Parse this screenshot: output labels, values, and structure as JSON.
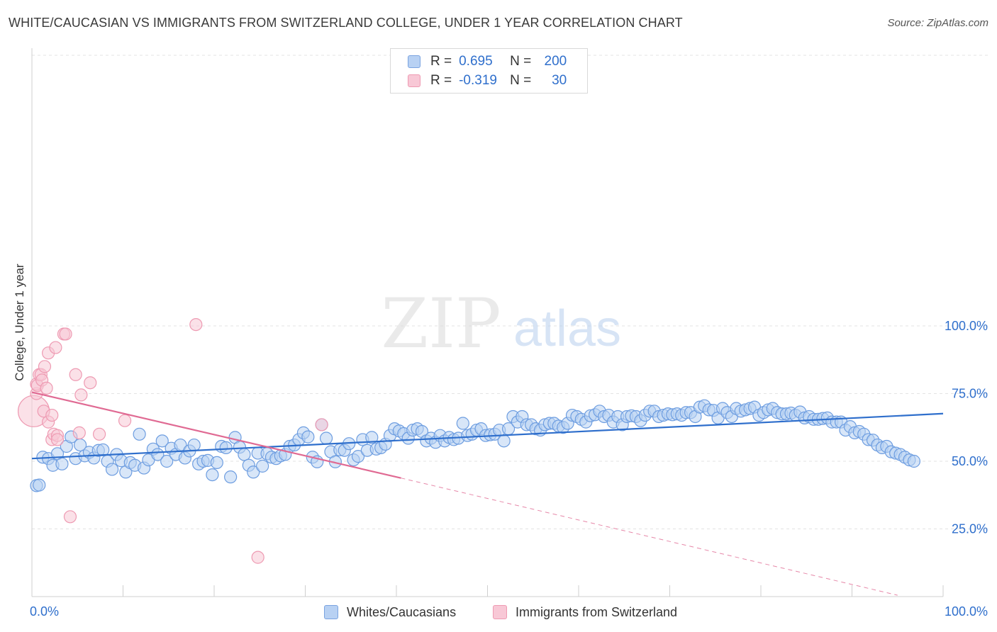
{
  "title": "WHITE/CAUCASIAN VS IMMIGRANTS FROM SWITZERLAND COLLEGE, UNDER 1 YEAR CORRELATION CHART",
  "source": "Source: ZipAtlas.com",
  "watermark": {
    "zip": "ZIP",
    "atlas": "atlas"
  },
  "legend": {
    "r_label": "R =",
    "n_label": "N =",
    "rows": [
      {
        "r": "0.695",
        "n": "200",
        "color": "#b8d1f3"
      },
      {
        "r": "-0.319",
        "n": "30",
        "color": "#f8c8d6"
      }
    ]
  },
  "bottom_legend": [
    {
      "label": "Whites/Caucasians",
      "color": "#b8d1f3"
    },
    {
      "label": "Immigrants from Switzerland",
      "color": "#f8c8d6"
    }
  ],
  "colors": {
    "blue": "#2f6fcc",
    "blue_fill": "#b8d1f3",
    "blue_stroke": "#6d9de0",
    "pink": "#e06a93",
    "pink_fill": "#f8c8d6",
    "pink_stroke": "#ee9ab2"
  },
  "chart_data": {
    "type": "scatter",
    "xlabel": "",
    "ylabel": "College, Under 1 year",
    "xlim": [
      0,
      100
    ],
    "ylim": [
      0,
      102
    ],
    "x_tick_labels": [
      "0.0%",
      "100.0%"
    ],
    "y_ticks": [
      25,
      50,
      75,
      100
    ],
    "y_tick_labels": [
      "25.0%",
      "50.0%",
      "75.0%",
      "100.0%"
    ],
    "grid": true,
    "legend_position": "top-center",
    "series": [
      {
        "name": "Whites/Caucasians",
        "trend": {
          "x0": 0,
          "y0": 51.0,
          "x1": 100,
          "y1": 67.6
        },
        "points": [
          [
            0.5,
            41.0
          ],
          [
            0.8,
            41.2
          ],
          [
            1.2,
            51.5
          ],
          [
            1.8,
            51.0
          ],
          [
            2.3,
            48.5
          ],
          [
            2.8,
            52.8
          ],
          [
            3.3,
            49.0
          ],
          [
            3.8,
            55.5
          ],
          [
            4.3,
            59.0
          ],
          [
            4.8,
            51.0
          ],
          [
            5.3,
            56.0
          ],
          [
            5.8,
            52.0
          ],
          [
            6.3,
            53.3
          ],
          [
            6.8,
            51.2
          ],
          [
            7.3,
            54.0
          ],
          [
            7.8,
            54.2
          ],
          [
            8.3,
            50.0
          ],
          [
            8.8,
            47.0
          ],
          [
            9.3,
            52.5
          ],
          [
            9.8,
            50.2
          ],
          [
            10.3,
            46.0
          ],
          [
            10.8,
            49.5
          ],
          [
            11.3,
            48.5
          ],
          [
            11.8,
            60.0
          ],
          [
            12.3,
            47.5
          ],
          [
            12.8,
            50.5
          ],
          [
            13.3,
            54.5
          ],
          [
            13.8,
            52.5
          ],
          [
            14.3,
            57.5
          ],
          [
            14.8,
            50.0
          ],
          [
            15.3,
            54.8
          ],
          [
            15.8,
            52.5
          ],
          [
            16.3,
            56.0
          ],
          [
            16.8,
            51.2
          ],
          [
            17.3,
            53.8
          ],
          [
            17.8,
            56.0
          ],
          [
            18.3,
            49.0
          ],
          [
            18.8,
            50.0
          ],
          [
            19.3,
            50.3
          ],
          [
            19.8,
            45.0
          ],
          [
            20.3,
            49.5
          ],
          [
            20.8,
            55.5
          ],
          [
            21.3,
            55.0
          ],
          [
            21.8,
            44.2
          ],
          [
            22.3,
            58.8
          ],
          [
            22.8,
            55.2
          ],
          [
            23.3,
            52.5
          ],
          [
            23.8,
            48.5
          ],
          [
            24.3,
            46.0
          ],
          [
            24.8,
            53.0
          ],
          [
            25.3,
            48.2
          ],
          [
            25.8,
            52.8
          ],
          [
            26.3,
            51.5
          ],
          [
            26.8,
            51.0
          ],
          [
            27.3,
            52.0
          ],
          [
            27.8,
            52.5
          ],
          [
            28.3,
            55.5
          ],
          [
            28.8,
            56.0
          ],
          [
            29.3,
            58.0
          ],
          [
            29.8,
            60.5
          ],
          [
            30.3,
            59.0
          ],
          [
            30.8,
            51.5
          ],
          [
            31.3,
            49.8
          ],
          [
            31.8,
            63.5
          ],
          [
            32.3,
            58.5
          ],
          [
            32.8,
            53.5
          ],
          [
            33.3,
            49.8
          ],
          [
            33.8,
            54.2
          ],
          [
            34.3,
            54.0
          ],
          [
            34.8,
            56.5
          ],
          [
            35.3,
            50.5
          ],
          [
            35.8,
            51.8
          ],
          [
            36.3,
            58.0
          ],
          [
            36.8,
            54.0
          ],
          [
            37.3,
            58.8
          ],
          [
            37.8,
            54.5
          ],
          [
            38.3,
            55.0
          ],
          [
            38.8,
            56.3
          ],
          [
            39.3,
            59.5
          ],
          [
            39.8,
            62.0
          ],
          [
            40.3,
            61.2
          ],
          [
            40.8,
            60.2
          ],
          [
            41.3,
            58.5
          ],
          [
            41.8,
            61.5
          ],
          [
            42.3,
            62.0
          ],
          [
            42.8,
            61.0
          ],
          [
            43.3,
            57.5
          ],
          [
            43.8,
            58.5
          ],
          [
            44.3,
            57.0
          ],
          [
            44.8,
            59.5
          ],
          [
            45.3,
            57.5
          ],
          [
            45.8,
            58.8
          ],
          [
            46.3,
            58.0
          ],
          [
            46.8,
            58.5
          ],
          [
            47.3,
            64.0
          ],
          [
            47.8,
            59.5
          ],
          [
            48.3,
            60.0
          ],
          [
            48.8,
            61.5
          ],
          [
            49.3,
            62.0
          ],
          [
            49.8,
            59.5
          ],
          [
            50.3,
            59.8
          ],
          [
            50.8,
            60.0
          ],
          [
            51.3,
            61.5
          ],
          [
            51.8,
            57.5
          ],
          [
            52.3,
            62.0
          ],
          [
            52.8,
            66.5
          ],
          [
            53.3,
            64.5
          ],
          [
            53.8,
            66.5
          ],
          [
            54.3,
            63.5
          ],
          [
            54.8,
            63.5
          ],
          [
            55.3,
            62.0
          ],
          [
            55.8,
            61.5
          ],
          [
            56.3,
            63.5
          ],
          [
            56.8,
            64.0
          ],
          [
            57.3,
            64.0
          ],
          [
            57.8,
            63.0
          ],
          [
            58.3,
            62.5
          ],
          [
            58.8,
            64.0
          ],
          [
            59.3,
            67.0
          ],
          [
            59.8,
            66.5
          ],
          [
            60.3,
            65.5
          ],
          [
            60.8,
            64.5
          ],
          [
            61.3,
            66.8
          ],
          [
            61.8,
            67.2
          ],
          [
            62.3,
            68.5
          ],
          [
            62.8,
            66.5
          ],
          [
            63.3,
            67.0
          ],
          [
            63.8,
            64.5
          ],
          [
            64.3,
            66.5
          ],
          [
            64.8,
            63.5
          ],
          [
            65.3,
            66.5
          ],
          [
            65.8,
            66.8
          ],
          [
            66.3,
            66.5
          ],
          [
            66.8,
            65.0
          ],
          [
            67.3,
            67.0
          ],
          [
            67.8,
            68.5
          ],
          [
            68.3,
            68.5
          ],
          [
            68.8,
            66.5
          ],
          [
            69.3,
            67.0
          ],
          [
            69.8,
            67.5
          ],
          [
            70.3,
            67.2
          ],
          [
            70.8,
            67.5
          ],
          [
            71.3,
            67.0
          ],
          [
            71.8,
            68.0
          ],
          [
            72.3,
            68.0
          ],
          [
            72.8,
            66.5
          ],
          [
            73.3,
            70.0
          ],
          [
            73.8,
            70.5
          ],
          [
            74.3,
            69.0
          ],
          [
            74.8,
            68.8
          ],
          [
            75.3,
            66.0
          ],
          [
            75.8,
            69.5
          ],
          [
            76.3,
            68.0
          ],
          [
            76.8,
            66.5
          ],
          [
            77.3,
            69.5
          ],
          [
            77.8,
            68.5
          ],
          [
            78.3,
            69.0
          ],
          [
            78.8,
            69.5
          ],
          [
            79.3,
            70.0
          ],
          [
            79.8,
            67.0
          ],
          [
            80.3,
            68.0
          ],
          [
            80.8,
            69.0
          ],
          [
            81.3,
            69.5
          ],
          [
            81.8,
            68.0
          ],
          [
            82.3,
            67.5
          ],
          [
            82.8,
            67.5
          ],
          [
            83.3,
            67.8
          ],
          [
            83.8,
            67.0
          ],
          [
            84.3,
            68.2
          ],
          [
            84.8,
            66.0
          ],
          [
            85.3,
            66.5
          ],
          [
            85.8,
            65.5
          ],
          [
            86.3,
            65.5
          ],
          [
            86.8,
            65.8
          ],
          [
            87.3,
            66.0
          ],
          [
            87.8,
            64.5
          ],
          [
            88.3,
            64.5
          ],
          [
            88.8,
            64.5
          ],
          [
            89.3,
            61.5
          ],
          [
            89.8,
            62.8
          ],
          [
            90.3,
            60.5
          ],
          [
            90.8,
            61.0
          ],
          [
            91.3,
            60.0
          ],
          [
            91.8,
            58.0
          ],
          [
            92.3,
            57.8
          ],
          [
            92.8,
            56.0
          ],
          [
            93.3,
            55.0
          ],
          [
            93.8,
            55.5
          ],
          [
            94.3,
            53.5
          ],
          [
            94.8,
            53.0
          ],
          [
            95.3,
            52.5
          ],
          [
            95.8,
            51.5
          ],
          [
            96.3,
            50.5
          ],
          [
            96.8,
            50.0
          ]
        ]
      },
      {
        "name": "Immigrants from Switzerland",
        "trend": {
          "x0": 0,
          "y0": 75.5,
          "x1": 40.5,
          "y1": 43.8
        },
        "trend_dashed_to": {
          "x": 95,
          "y": 0.5
        },
        "points": [
          [
            0.2,
            68.5
          ],
          [
            0.5,
            75.0
          ],
          [
            0.5,
            78.5
          ],
          [
            0.6,
            78.0
          ],
          [
            0.8,
            82.0
          ],
          [
            1.0,
            82.0
          ],
          [
            1.1,
            80.0
          ],
          [
            1.3,
            68.5
          ],
          [
            1.4,
            85.0
          ],
          [
            1.6,
            77.0
          ],
          [
            1.8,
            64.5
          ],
          [
            1.8,
            90.0
          ],
          [
            2.2,
            67.0
          ],
          [
            2.2,
            58.0
          ],
          [
            2.4,
            60.0
          ],
          [
            2.6,
            92.0
          ],
          [
            2.8,
            59.5
          ],
          [
            2.8,
            58.0
          ],
          [
            3.5,
            97.0
          ],
          [
            3.7,
            97.0
          ],
          [
            4.2,
            29.5
          ],
          [
            4.8,
            82.0
          ],
          [
            5.2,
            60.5
          ],
          [
            5.4,
            74.5
          ],
          [
            6.4,
            79.0
          ],
          [
            7.4,
            60.0
          ],
          [
            10.2,
            65.0
          ],
          [
            18.0,
            100.5
          ],
          [
            24.8,
            14.5
          ],
          [
            31.8,
            63.5
          ]
        ]
      }
    ]
  }
}
